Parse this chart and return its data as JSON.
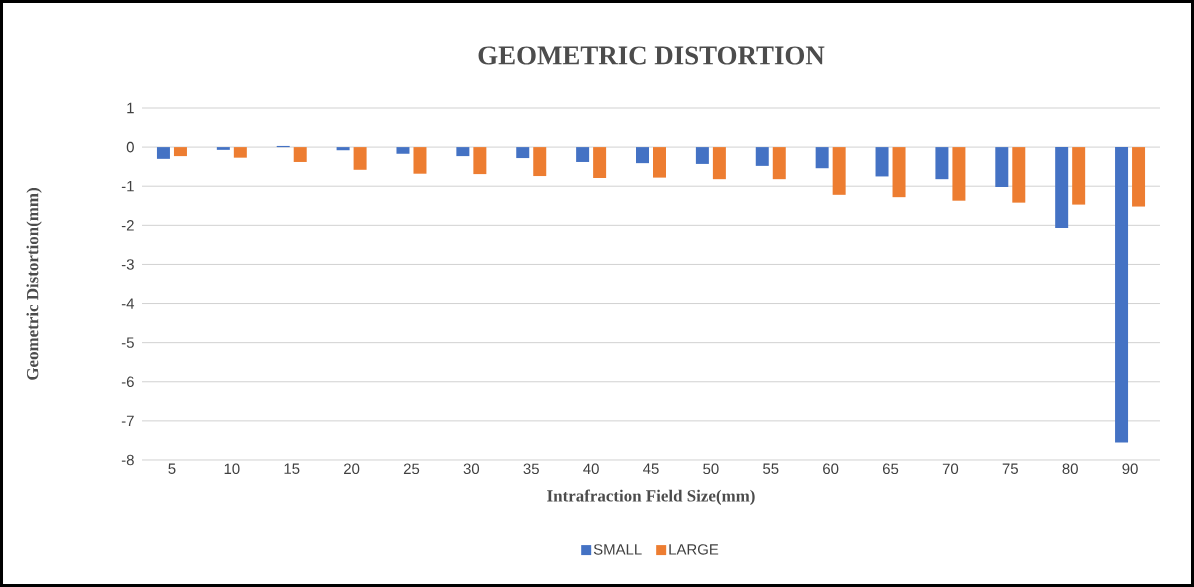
{
  "chart_data": {
    "type": "bar",
    "title": "GEOMETRIC DISTORTION",
    "xlabel": "Intrafraction Field Size(mm)",
    "ylabel": "Geometric Distortion(mm)",
    "categories": [
      "5",
      "10",
      "15",
      "20",
      "25",
      "30",
      "35",
      "40",
      "45",
      "50",
      "55",
      "60",
      "65",
      "70",
      "75",
      "80",
      "90"
    ],
    "series": [
      {
        "name": "SMALL",
        "color": "#4472c4",
        "values": [
          -0.3,
          -0.07,
          0.03,
          -0.08,
          -0.17,
          -0.23,
          -0.28,
          -0.38,
          -0.41,
          -0.43,
          -0.48,
          -0.54,
          -0.75,
          -0.82,
          -1.02,
          -2.07,
          -7.55
        ]
      },
      {
        "name": "LARGE",
        "color": "#ed7d31",
        "values": [
          -0.23,
          -0.27,
          -0.38,
          -0.58,
          -0.68,
          -0.69,
          -0.74,
          -0.79,
          -0.78,
          -0.82,
          -0.82,
          -1.22,
          -1.28,
          -1.37,
          -1.42,
          -1.47,
          -1.52
        ]
      }
    ],
    "ylim": [
      -8,
      1
    ],
    "yticks": [
      -8,
      -7,
      -6,
      -5,
      -4,
      -3,
      -2,
      -1,
      0,
      1
    ],
    "grid": "y",
    "legend": "bottom"
  }
}
